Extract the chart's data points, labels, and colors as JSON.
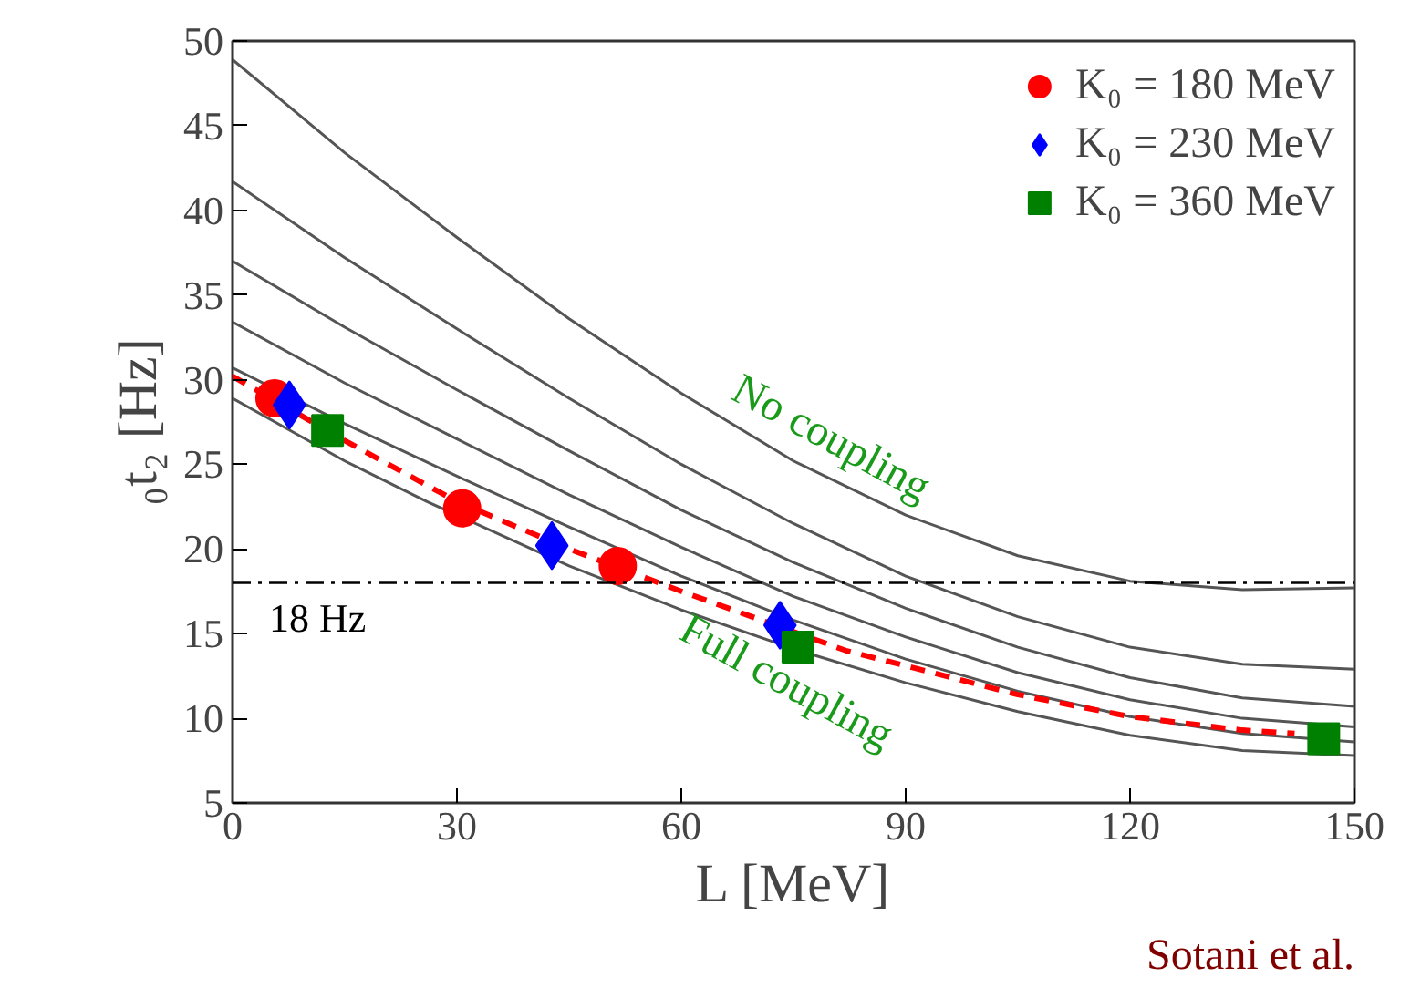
{
  "chart_data": {
    "type": "line",
    "xlabel": "L [MeV]",
    "ylabel": "₀t₂ [Hz]",
    "xlim": [
      0,
      150
    ],
    "xticks": [
      0,
      30,
      60,
      90,
      120,
      150
    ],
    "ylim": [
      5,
      50
    ],
    "yticks": [
      5,
      10,
      15,
      20,
      25,
      30,
      35,
      40,
      45,
      50
    ],
    "grid": false,
    "legend": "top right",
    "series": [
      {
        "type": "line",
        "color": "#555555",
        "line_style": "solid",
        "x": [
          0,
          15,
          30,
          45,
          60,
          75,
          90,
          105,
          120,
          135,
          150
        ],
        "values": [
          48.9,
          43.4,
          38.4,
          33.6,
          29.2,
          25.2,
          22.0,
          19.6,
          18.1,
          17.6,
          17.7
        ]
      },
      {
        "type": "line",
        "color": "#555555",
        "line_style": "solid",
        "x": [
          0,
          15,
          30,
          45,
          60,
          75,
          90,
          105,
          120,
          135,
          150
        ],
        "values": [
          41.7,
          37.2,
          33.0,
          28.9,
          25.0,
          21.5,
          18.4,
          16.0,
          14.2,
          13.2,
          12.9
        ]
      },
      {
        "type": "line",
        "color": "#555555",
        "line_style": "solid",
        "x": [
          0,
          15,
          30,
          45,
          60,
          75,
          90,
          105,
          120,
          135,
          150
        ],
        "values": [
          37.0,
          33.1,
          29.4,
          25.8,
          22.3,
          19.2,
          16.5,
          14.2,
          12.4,
          11.2,
          10.7
        ]
      },
      {
        "type": "line",
        "color": "#555555",
        "line_style": "solid",
        "x": [
          0,
          15,
          30,
          45,
          60,
          75,
          90,
          105,
          120,
          135,
          150
        ],
        "values": [
          33.4,
          29.8,
          26.5,
          23.2,
          20.1,
          17.2,
          14.8,
          12.7,
          11.1,
          10.0,
          9.5
        ]
      },
      {
        "type": "line",
        "color": "#555555",
        "line_style": "solid",
        "x": [
          0,
          15,
          30,
          45,
          60,
          75,
          90,
          105,
          120,
          135,
          150
        ],
        "values": [
          30.7,
          27.4,
          24.3,
          21.3,
          18.4,
          15.8,
          13.5,
          11.6,
          10.1,
          9.1,
          8.6
        ]
      },
      {
        "color": "#555555",
        "line_style": "solid",
        "x": [
          0,
          15,
          26,
          45,
          60,
          75,
          90,
          105,
          120,
          135,
          150
        ],
        "values": [
          28.9,
          25.2,
          22.8,
          19.0,
          16.4,
          14.1,
          12.1,
          10.4,
          9.0,
          8.1,
          7.8
        ]
      },
      {
        "color": "#ff0000",
        "line_style": "dashed",
        "x": [
          0,
          15,
          30,
          45,
          60,
          82,
          90,
          105,
          120,
          135,
          142
        ],
        "values": [
          30.2,
          26.4,
          22.8,
          20.0,
          17.5,
          14.0,
          13.1,
          11.4,
          10.1,
          9.3,
          9.1
        ]
      },
      {
        "type": "scatter",
        "name": "K₀ = 180 MeV",
        "color": "#ff0000",
        "marker": "circle",
        "x": [
          5.6,
          30.7,
          51.5
        ],
        "values": [
          28.9,
          22.4,
          19.0
        ]
      },
      {
        "type": "scatter",
        "name": "K₀ = 230 MeV",
        "color": "#0000ff",
        "marker": "diamond",
        "x": [
          7.6,
          42.7,
          73.2
        ],
        "values": [
          28.5,
          20.2,
          15.5
        ]
      },
      {
        "type": "scatter",
        "name": "K₀ = 360 MeV",
        "color": "#008000",
        "marker": "square",
        "x": [
          12.7,
          75.6,
          145.9
        ],
        "values": [
          27.0,
          14.2,
          8.8
        ]
      }
    ],
    "ref_lines": [
      {
        "axis": "y",
        "value": 18,
        "label": "18 Hz",
        "color": "#000000",
        "line_style": "dashdot"
      }
    ],
    "annotations": [
      "No coupling",
      "Full coupling",
      "Sotani et al."
    ]
  }
}
